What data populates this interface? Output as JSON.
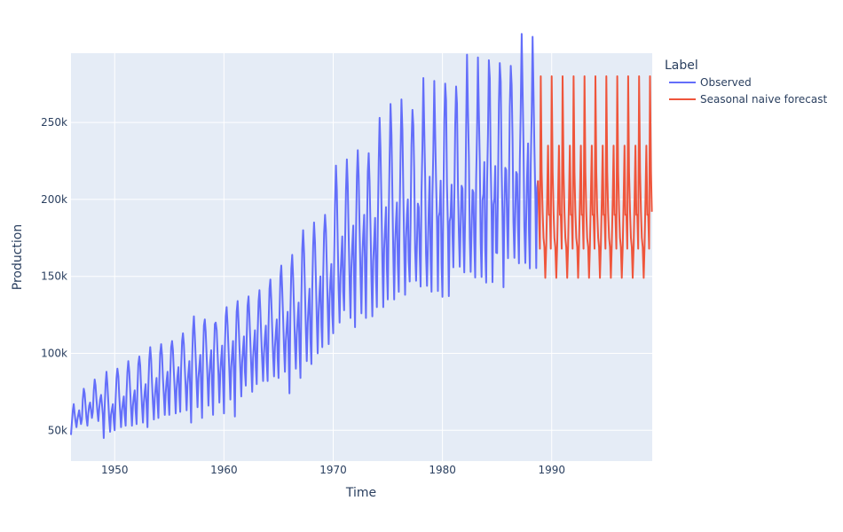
{
  "chart_data": {
    "type": "line",
    "title": "",
    "xlabel": "Time",
    "ylabel": "Production",
    "xlim": [
      1946.0,
      1999.2
    ],
    "ylim": [
      30000,
      295000
    ],
    "x_ticks": [
      1950,
      1960,
      1970,
      1980,
      1990
    ],
    "x_tick_labels": [
      "1950",
      "1960",
      "1970",
      "1980",
      "1990"
    ],
    "y_ticks": [
      50000,
      100000,
      150000,
      200000,
      250000
    ],
    "y_tick_labels": [
      "50k",
      "100k",
      "150k",
      "200k",
      "250k"
    ],
    "grid": true,
    "legend": {
      "title": "Label",
      "placement": "right"
    },
    "frequency": "monthly",
    "observed_segments": [
      {
        "start_year": 1946,
        "peaks": [
          67000
        ],
        "base": [
          47000,
          63000
        ]
      },
      {
        "start_year": 1947,
        "peaks": [
          77000
        ],
        "base": [
          52000,
          65000
        ]
      }
    ],
    "series": [
      {
        "name": "Observed",
        "color": "#636efa",
        "annual": [
          {
            "year": 1946,
            "v": [
              47000,
              55000,
              63000,
              67000,
              61000,
              56000,
              52000,
              57000,
              60000,
              63000,
              58000,
              54000
            ]
          },
          {
            "year": 1947,
            "v": [
              57000,
              70000,
              77000,
              74000,
              66000,
              58000,
              53000,
              61000,
              66000,
              68000,
              63000,
              58000
            ]
          },
          {
            "year": 1948,
            "v": [
              62000,
              76000,
              83000,
              79000,
              70000,
              62000,
              56000,
              64000,
              70000,
              73000,
              67000,
              60000
            ]
          },
          {
            "year": 1949,
            "v": [
              45000,
              66000,
              80000,
              88000,
              80000,
              68000,
              57000,
              49000,
              60000,
              64000,
              67000,
              56000
            ]
          },
          {
            "year": 1950,
            "v": [
              50000,
              70000,
              84000,
              90000,
              85000,
              72000,
              62000,
              52000,
              63000,
              68000,
              72000,
              60000
            ]
          },
          {
            "year": 1951,
            "v": [
              53000,
              74000,
              88000,
              95000,
              88000,
              76000,
              64000,
              53000,
              66000,
              72000,
              76000,
              63000
            ]
          },
          {
            "year": 1952,
            "v": [
              54000,
              77000,
              93000,
              98000,
              92000,
              78000,
              66000,
              55000,
              68000,
              75000,
              80000,
              65000
            ]
          },
          {
            "year": 1953,
            "v": [
              52000,
              79000,
              96000,
              104000,
              96000,
              81000,
              68000,
              57000,
              71000,
              78000,
              84000,
              68000
            ]
          },
          {
            "year": 1954,
            "v": [
              58000,
              82000,
              100000,
              106000,
              99000,
              84000,
              72000,
              60000,
              74000,
              82000,
              88000,
              70000
            ]
          },
          {
            "year": 1955,
            "v": [
              60000,
              86000,
              104000,
              108000,
              102000,
              88000,
              75000,
              61000,
              77000,
              85000,
              91000,
              73000
            ]
          },
          {
            "year": 1956,
            "v": [
              62000,
              90000,
              108000,
              113000,
              106000,
              90000,
              77000,
              63000,
              80000,
              88000,
              95000,
              75000
            ]
          },
          {
            "year": 1957,
            "v": [
              55000,
              95000,
              115000,
              124000,
              112000,
              96000,
              80000,
              65000,
              84000,
              92000,
              99000,
              78000
            ]
          },
          {
            "year": 1958,
            "v": [
              58000,
              98000,
              118000,
              122000,
              114000,
              98000,
              83000,
              66000,
              86000,
              95000,
              102000,
              80000
            ]
          },
          {
            "year": 1959,
            "v": [
              60000,
              100000,
              119000,
              120000,
              115000,
              100000,
              86000,
              68000,
              88000,
              97000,
              105000,
              82000
            ]
          },
          {
            "year": 1960,
            "v": [
              61000,
              104000,
              124000,
              130000,
              118000,
              103000,
              88000,
              70000,
              91000,
              100000,
              108000,
              85000
            ]
          },
          {
            "year": 1961,
            "v": [
              59000,
              106000,
              127000,
              134000,
              121000,
              105000,
              90000,
              72000,
              94000,
              103000,
              111000,
              88000
            ]
          },
          {
            "year": 1962,
            "v": [
              79000,
              110000,
              131000,
              137000,
              124000,
              108000,
              92000,
              75000,
              97000,
              106000,
              115000,
              91000
            ]
          },
          {
            "year": 1963,
            "v": [
              80000,
              112000,
              134000,
              141000,
              128000,
              111000,
              95000,
              82000,
              100000,
              110000,
              118000,
              94000
            ]
          },
          {
            "year": 1964,
            "v": [
              82000,
              118000,
              142000,
              148000,
              135000,
              117000,
              98000,
              85000,
              104000,
              114000,
              122000,
              97000
            ]
          },
          {
            "year": 1965,
            "v": [
              84000,
              126000,
              150000,
              157000,
              142000,
              122000,
              103000,
              88000,
              108000,
              118000,
              127000,
              100000
            ]
          },
          {
            "year": 1966,
            "v": [
              74000,
              128000,
              155000,
              164000,
              150000,
              128000,
              106000,
              90000,
              112000,
              123000,
              133000,
              103000
            ]
          },
          {
            "year": 1967,
            "v": [
              84000,
              135000,
              168000,
              180000,
              165000,
              140000,
              115000,
              95000,
              120000,
              132000,
              142000,
              110000
            ]
          },
          {
            "year": 1968,
            "v": [
              93000,
              142000,
              170000,
              185000,
              172000,
              148000,
              122000,
              100000,
              127000,
              140000,
              150000,
              118000
            ]
          },
          {
            "year": 1969,
            "v": [
              104000,
              150000,
              178000,
              190000,
              180000,
              156000,
              130000,
              106000,
              135000,
              148000,
              158000,
              125000
            ]
          },
          {
            "year": 1970,
            "v": [
              113000,
              160000,
              196000,
              222000,
              206000,
              172000,
              142000,
              120000,
              150000,
              163000,
              176000,
              140000
            ]
          },
          {
            "year": 1971,
            "v": [
              128000,
              170000,
              206000,
              226000,
              209000,
              177000,
              146000,
              123000,
              156000,
              170000,
              183000,
              147000
            ]
          },
          {
            "year": 1972,
            "v": [
              117000,
              175000,
              215000,
              232000,
              215000,
              182000,
              150000,
              126000,
              162000,
              177000,
              190000,
              152000
            ]
          },
          {
            "year": 1973,
            "v": [
              123000,
              178000,
              218000,
              230000,
              212000,
              180000,
              148000,
              124000,
              160000,
              174000,
              188000,
              150000
            ]
          },
          {
            "year": 1974,
            "v": [
              130000,
              185000,
              225000,
              253000,
              233000,
              196000,
              160000,
              130000,
              168000,
              182000,
              195000,
              155000
            ]
          },
          {
            "year": 1975,
            "v": [
              135000,
              190000,
              228000,
              262000,
              242000,
              203000,
              165000,
              135000,
              172000,
              186000,
              198000,
              158000
            ]
          },
          {
            "year": 1976,
            "v": [
              140000,
              190000,
              230000,
              265000,
              245000,
              205000,
              168000,
              138000,
              175000,
              190000,
              200000,
              160000
            ]
          }
        ]
      },
      {
        "name": "Seasonal naive forecast",
        "color": "#ef553b",
        "season": [
          190000,
          168000,
          280000,
          218000,
          192000,
          175000,
          169000,
          149000,
          170000,
          200000,
          235000,
          190000
        ]
      }
    ]
  }
}
